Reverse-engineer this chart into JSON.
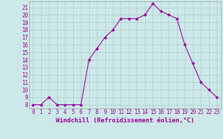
{
  "x": [
    0,
    1,
    2,
    3,
    4,
    5,
    6,
    7,
    8,
    9,
    10,
    11,
    12,
    13,
    14,
    15,
    16,
    17,
    18,
    19,
    20,
    21,
    22,
    23
  ],
  "y": [
    8,
    8,
    9,
    8,
    8,
    8,
    8,
    14,
    15.5,
    17,
    18,
    19.5,
    19.5,
    19.5,
    20,
    21.5,
    20.5,
    20,
    19.5,
    16,
    13.5,
    11,
    10,
    9
  ],
  "line_color": "#990099",
  "marker": "D",
  "marker_size": 2,
  "bg_color": "#cce8e8",
  "grid_color": "#aacccc",
  "xlabel": "Windchill (Refroidissement éolien,°C)",
  "xlim": [
    -0.5,
    23.5
  ],
  "ylim": [
    7.5,
    21.8
  ],
  "yticks": [
    8,
    9,
    10,
    11,
    12,
    13,
    14,
    15,
    16,
    17,
    18,
    19,
    20,
    21
  ],
  "xticks": [
    0,
    1,
    2,
    3,
    4,
    5,
    6,
    7,
    8,
    9,
    10,
    11,
    12,
    13,
    14,
    15,
    16,
    17,
    18,
    19,
    20,
    21,
    22,
    23
  ],
  "tick_fontsize": 5.5,
  "xlabel_fontsize": 6.5
}
